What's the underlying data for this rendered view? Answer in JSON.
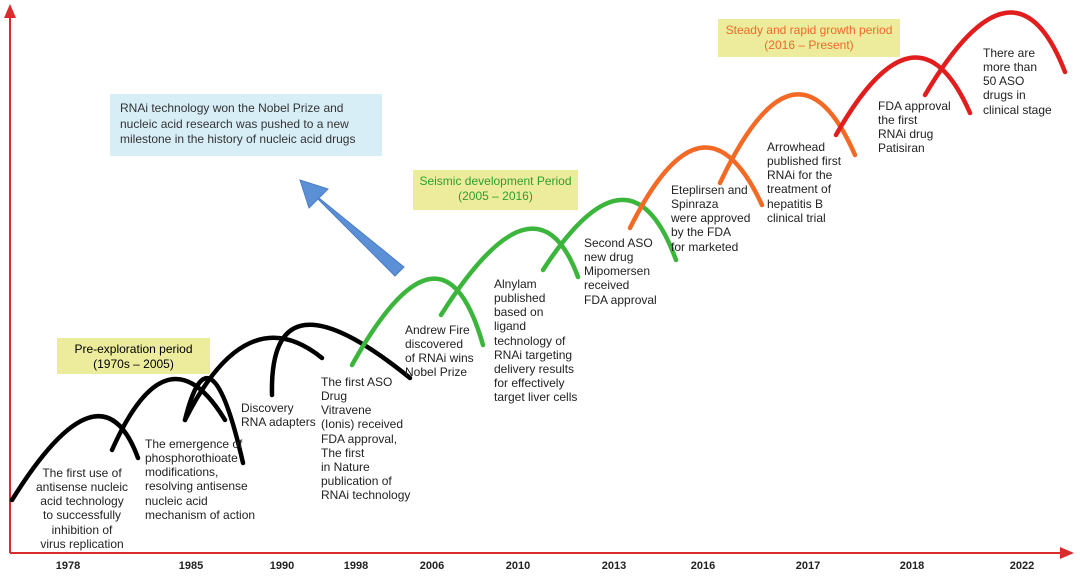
{
  "colors": {
    "axis": "#d92d2d",
    "stage_black": "#000000",
    "stage_green": "#3cb53c",
    "stage_orange": "#f26a26",
    "stage_red": "#e11d1d",
    "period_box": "#ecec9c",
    "note_box": "#d7eef7",
    "arrow_blue": "#5b8fd6"
  },
  "periods": {
    "pre_exploration": {
      "title": "Pre-exploration period",
      "range": "(1970s – 2005)",
      "text_color": "#222222"
    },
    "seismic": {
      "title": "Seismic development Period",
      "range": "(2005 – 2016)",
      "text_color": "#2e9e2e"
    },
    "steady": {
      "title": "Steady and rapid growth period",
      "range": "(2016 – Present)",
      "text_color": "#ef6a2a"
    }
  },
  "note": {
    "text": "RNAi technology won the Nobel Prize and\nnucleic acid research was pushed to a new\nmilestone in the history of nucleic acid drugs"
  },
  "years": [
    "1978",
    "1985",
    "1990",
    "1998",
    "2006",
    "2010",
    "2013",
    "2016",
    "2017",
    "2018",
    "2022"
  ],
  "milestones": [
    {
      "text": "The first use of\nantisense nucleic\nacid technology\nto successfully\ninhibition of\nvirus replication"
    },
    {
      "text": "The emergence of\nphosphorothioate\nmodifications,\nresolving antisense\nnucleic acid\nmechanism of action"
    },
    {
      "text": "Discovery\nRNA adapters"
    },
    {
      "text": "The first ASO\nDrug\nVitravene\n(Ionis) received\nFDA approval,\nThe first\nin Nature\npublication of\nRNAi technology"
    },
    {
      "text": "Andrew Fire\ndiscovered\nof RNAi wins\nNobel Prize"
    },
    {
      "text": "Alnylam\npublished\nbased on\nligand\ntechnology of\nRNAi targeting\ndelivery results\nfor effectively\ntarget liver cells"
    },
    {
      "text": "Second ASO\nnew drug\nMipomersen\nreceived\nFDA approval"
    },
    {
      "text": "Eteplirsen and\nSpinraza\nwere approved\nby the FDA\nfor marketed"
    },
    {
      "text": "Arrowhead\npublished first\nRNAi for the\ntreatment of\nhepatitis B\nclinical trial"
    },
    {
      "text": "FDA approval\nthe first\nRNAi drug\nPatisiran"
    },
    {
      "text": "There are\nmore than\n50 ASO\ndrugs in\nclinical stage"
    }
  ]
}
